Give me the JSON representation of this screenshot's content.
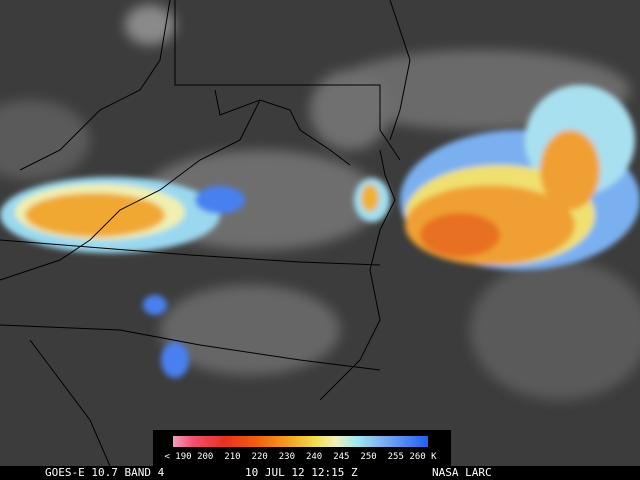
{
  "colorbar": {
    "labels": [
      "< 190",
      "200",
      "210",
      "220",
      "230",
      "240",
      "245",
      "250",
      "255",
      "260 K"
    ]
  },
  "footer": {
    "satellite": "GOES-E 10.7 BAND 4",
    "time": "10 JUL 12 12:15 Z",
    "source": "NASA LARC"
  }
}
